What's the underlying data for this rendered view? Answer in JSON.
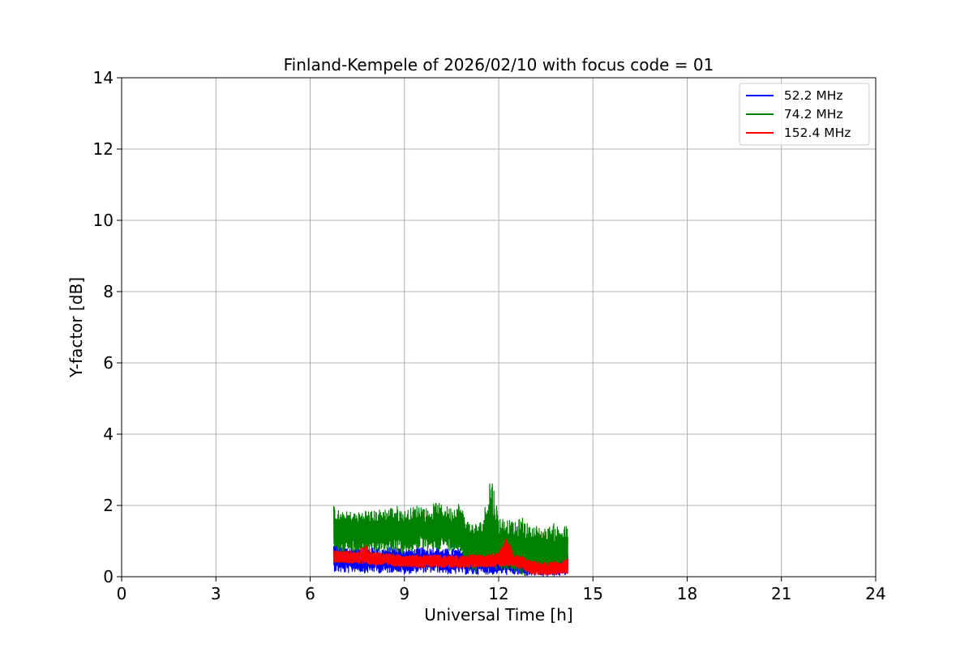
{
  "chart_data": {
    "type": "line",
    "title": "Finland-Kempele of 2026/02/10 with focus code = 01",
    "xlabel": "Universal Time [h]",
    "ylabel": "Y-factor [dB]",
    "xlim": [
      0,
      24
    ],
    "ylim": [
      0,
      14
    ],
    "xticks": [
      0,
      3,
      6,
      9,
      12,
      15,
      18,
      21,
      24
    ],
    "yticks": [
      0,
      2,
      4,
      6,
      8,
      10,
      12,
      14
    ],
    "xtick_labels": [
      "0",
      "3",
      "6",
      "9",
      "12",
      "15",
      "18",
      "21",
      "24"
    ],
    "ytick_labels": [
      "0",
      "2",
      "4",
      "6",
      "8",
      "10",
      "12",
      "14"
    ],
    "grid": true,
    "legend_position": "top-right",
    "series": [
      {
        "name": " 52.2 MHz",
        "color": "#0000ff",
        "x": [
          6.75,
          7.0,
          7.25,
          7.5,
          7.75,
          8.0,
          8.25,
          8.5,
          8.75,
          9.0,
          9.25,
          9.5,
          9.75,
          10.0,
          10.25,
          10.5,
          10.75,
          11.0,
          11.25,
          11.5,
          11.75,
          12.0,
          12.25,
          12.5,
          12.75,
          13.0,
          13.25,
          13.5,
          13.75,
          14.0,
          14.2
        ],
        "y": [
          0.55,
          0.5,
          0.48,
          0.5,
          0.45,
          0.5,
          0.45,
          0.48,
          0.5,
          0.42,
          0.45,
          0.48,
          0.45,
          0.5,
          0.45,
          0.42,
          0.45,
          0.4,
          0.42,
          0.45,
          0.4,
          0.42,
          0.4,
          0.38,
          0.35,
          0.3,
          0.3,
          0.28,
          0.3,
          0.3,
          0.32
        ],
        "band_low": [
          0.15,
          0.1,
          0.1,
          0.15,
          0.1,
          0.12,
          0.1,
          0.1,
          0.15,
          0.05,
          0.1,
          0.12,
          0.1,
          0.12,
          0.1,
          0.05,
          0.1,
          0.05,
          0.05,
          0.08,
          0.05,
          0.08,
          0.05,
          0.05,
          0.02,
          0.02,
          0.02,
          0.0,
          0.02,
          0.02,
          0.05
        ],
        "band_high": [
          0.95,
          0.85,
          0.85,
          0.85,
          0.8,
          0.85,
          0.8,
          0.82,
          0.85,
          0.8,
          0.78,
          0.82,
          0.8,
          0.85,
          0.8,
          0.78,
          0.8,
          0.75,
          0.78,
          0.8,
          0.75,
          0.78,
          0.75,
          0.72,
          0.7,
          0.65,
          0.62,
          0.6,
          0.62,
          0.65,
          0.65
        ]
      },
      {
        "name": " 74.2 MHz",
        "color": "#008000",
        "x": [
          6.75,
          7.0,
          7.25,
          7.5,
          7.75,
          8.0,
          8.25,
          8.5,
          8.75,
          9.0,
          9.25,
          9.5,
          9.75,
          10.0,
          10.25,
          10.5,
          10.75,
          11.0,
          11.25,
          11.5,
          11.75,
          12.0,
          12.25,
          12.5,
          12.75,
          13.0,
          13.25,
          13.5,
          13.75,
          14.0,
          14.2
        ],
        "y": [
          1.3,
          1.2,
          1.25,
          1.2,
          1.25,
          1.2,
          1.3,
          1.25,
          1.3,
          1.2,
          1.3,
          1.35,
          1.25,
          1.3,
          1.35,
          1.3,
          1.3,
          0.9,
          0.8,
          0.9,
          1.0,
          0.85,
          0.9,
          0.8,
          0.75,
          0.7,
          0.7,
          0.65,
          0.7,
          0.7,
          0.75
        ],
        "band_low": [
          0.8,
          0.6,
          0.7,
          0.6,
          0.7,
          0.6,
          0.75,
          0.7,
          0.75,
          0.6,
          0.7,
          0.8,
          0.7,
          0.75,
          0.8,
          0.7,
          0.75,
          0.2,
          0.1,
          0.2,
          0.3,
          0.15,
          0.2,
          0.1,
          0.05,
          0.1,
          0.05,
          0.05,
          0.1,
          0.1,
          0.15
        ],
        "band_high": [
          2.0,
          1.8,
          1.85,
          1.8,
          1.9,
          1.85,
          1.9,
          1.95,
          2.0,
          1.85,
          1.95,
          2.05,
          1.9,
          2.1,
          2.0,
          1.95,
          2.1,
          1.6,
          1.5,
          1.6,
          3.1,
          1.7,
          1.65,
          1.5,
          1.7,
          1.4,
          1.45,
          1.35,
          1.5,
          1.4,
          1.45
        ]
      },
      {
        "name": " 152.4 MHz",
        "color": "#ff0000",
        "x": [
          6.75,
          7.0,
          7.25,
          7.5,
          7.75,
          8.0,
          8.25,
          8.5,
          8.75,
          9.0,
          9.25,
          9.5,
          9.75,
          10.0,
          10.25,
          10.5,
          10.75,
          11.0,
          11.25,
          11.5,
          11.75,
          12.0,
          12.25,
          12.5,
          12.75,
          13.0,
          13.25,
          13.5,
          13.75,
          14.0,
          14.2
        ],
        "y": [
          0.6,
          0.55,
          0.55,
          0.52,
          0.55,
          0.5,
          0.5,
          0.48,
          0.45,
          0.45,
          0.45,
          0.42,
          0.45,
          0.45,
          0.42,
          0.42,
          0.4,
          0.42,
          0.45,
          0.45,
          0.45,
          0.45,
          0.45,
          0.42,
          0.4,
          0.25,
          0.22,
          0.2,
          0.2,
          0.25,
          0.3
        ],
        "band_low": [
          0.4,
          0.38,
          0.38,
          0.35,
          0.38,
          0.32,
          0.32,
          0.3,
          0.28,
          0.28,
          0.28,
          0.25,
          0.28,
          0.28,
          0.25,
          0.25,
          0.25,
          0.25,
          0.28,
          0.28,
          0.28,
          0.28,
          0.28,
          0.25,
          0.22,
          0.08,
          0.06,
          0.05,
          0.05,
          0.08,
          0.1
        ],
        "band_high": [
          0.75,
          0.72,
          0.72,
          0.7,
          0.9,
          0.68,
          0.68,
          0.65,
          0.62,
          0.62,
          0.62,
          0.6,
          0.62,
          0.62,
          0.6,
          0.6,
          0.58,
          0.6,
          0.62,
          0.62,
          0.65,
          0.65,
          1.1,
          0.6,
          0.58,
          0.45,
          0.42,
          0.4,
          0.42,
          0.45,
          0.5
        ]
      }
    ]
  }
}
